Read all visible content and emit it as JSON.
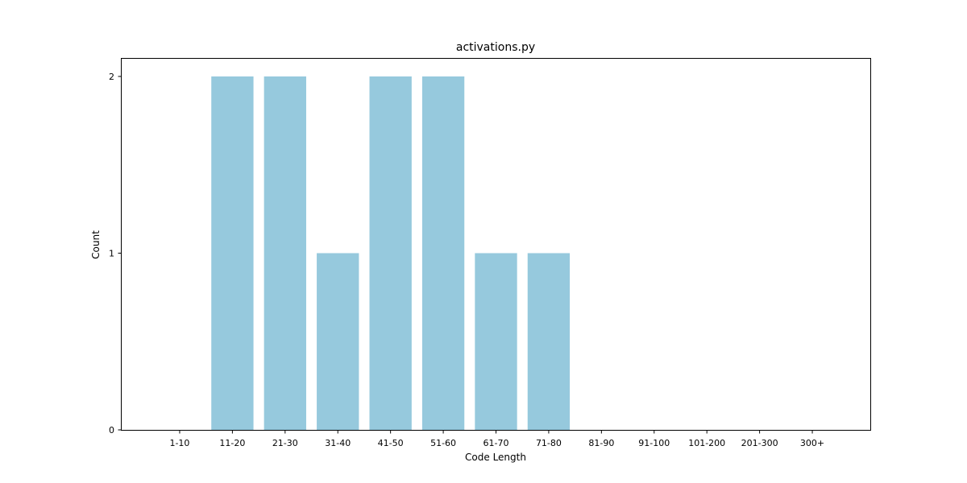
{
  "chart_data": {
    "type": "bar",
    "title": "activations.py",
    "xlabel": "Code Length",
    "ylabel": "Count",
    "categories": [
      "1-10",
      "11-20",
      "21-30",
      "31-40",
      "41-50",
      "51-60",
      "61-70",
      "71-80",
      "81-90",
      "91-100",
      "101-200",
      "201-300",
      "300+"
    ],
    "values": [
      0,
      2,
      2,
      1,
      2,
      2,
      1,
      1,
      0,
      0,
      0,
      0,
      0
    ],
    "ylim": [
      0,
      2.1
    ],
    "yticks": [
      0,
      1,
      2
    ],
    "bar_color": "#96c9dd",
    "grid": false,
    "legend": false
  }
}
